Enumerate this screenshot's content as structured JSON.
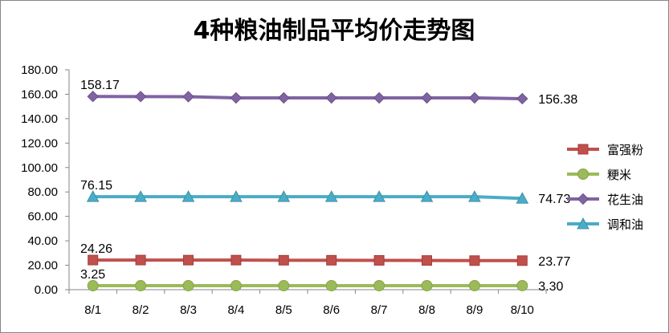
{
  "chart_data": {
    "type": "line",
    "title": "4种粮油制品平均价走势图",
    "xlabel": "",
    "ylabel": "",
    "categories": [
      "8/1",
      "8/2",
      "8/3",
      "8/4",
      "8/5",
      "8/6",
      "8/7",
      "8/8",
      "8/9",
      "8/10"
    ],
    "ylim": [
      0,
      180
    ],
    "yticks": [
      "0.00",
      "20.00",
      "40.00",
      "60.00",
      "80.00",
      "100.00",
      "120.00",
      "140.00",
      "160.00",
      "180.00"
    ],
    "grid": false,
    "legend_position": "right",
    "series": [
      {
        "name": "富强粉",
        "color": "#c0504d",
        "marker": "square",
        "values": [
          24.26,
          24.25,
          24.2,
          24.2,
          24.1,
          24.1,
          24.0,
          23.9,
          23.8,
          23.77
        ],
        "first_label": "24.26",
        "last_label": "23.77"
      },
      {
        "name": "粳米",
        "color": "#9bbb59",
        "marker": "circle",
        "values": [
          3.25,
          3.25,
          3.26,
          3.26,
          3.27,
          3.28,
          3.28,
          3.29,
          3.29,
          3.3
        ],
        "first_label": "3.25",
        "last_label": "3.30"
      },
      {
        "name": "花生油",
        "color": "#8064a2",
        "marker": "diamond",
        "values": [
          158.17,
          158.1,
          158.0,
          157.0,
          157.0,
          157.0,
          157.0,
          157.0,
          157.0,
          156.38
        ],
        "first_label": "158.17",
        "last_label": "156.38"
      },
      {
        "name": "调和油",
        "color": "#4bacc6",
        "marker": "triangle",
        "values": [
          76.15,
          76.1,
          76.1,
          76.1,
          76.1,
          76.1,
          76.1,
          76.1,
          76.1,
          74.73
        ],
        "first_label": "76.15",
        "last_label": "74.73"
      }
    ]
  }
}
